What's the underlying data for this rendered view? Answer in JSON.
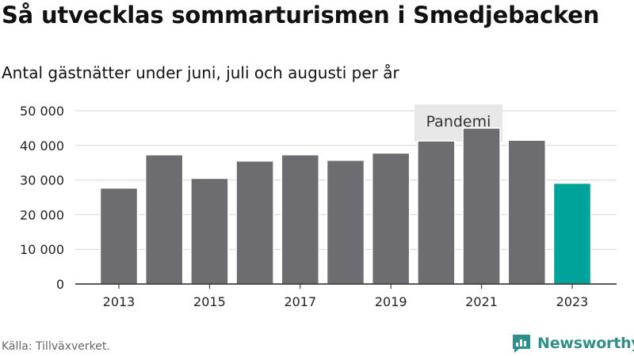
{
  "header": {
    "title": "Så utvecklas sommarturismen i Smedjebacken",
    "subtitle": "Antal gästnätter under juni, juli och augusti per år"
  },
  "footer": {
    "source": "Källa: Tillväxverket.",
    "brand": "Newsworthy"
  },
  "colors": {
    "bar": "#6d6c71",
    "highlight": "#00a39a",
    "annotation_bg": "#e8e8e8",
    "grid": "#d6d6d6",
    "brand": "#2f8f8a"
  },
  "chart_data": {
    "type": "bar",
    "categories": [
      "2013",
      "2014",
      "2015",
      "2016",
      "2017",
      "2018",
      "2019",
      "2020",
      "2021",
      "2022",
      "2023"
    ],
    "values": [
      27700,
      37300,
      30500,
      35500,
      37300,
      35700,
      37800,
      41300,
      45000,
      41500,
      29100
    ],
    "highlight_index": 10,
    "ylim": [
      0,
      50000
    ],
    "yticks": [
      0,
      10000,
      20000,
      30000,
      40000,
      50000
    ],
    "ytick_labels": [
      "0",
      "10 000",
      "20 000",
      "30 000",
      "40 000",
      "50 000"
    ],
    "xtick_labels": [
      "2013",
      "2015",
      "2017",
      "2019",
      "2021",
      "2023"
    ],
    "grid": true,
    "annotation": {
      "label": "Pandemi",
      "from": "2020",
      "to": "2021"
    }
  }
}
